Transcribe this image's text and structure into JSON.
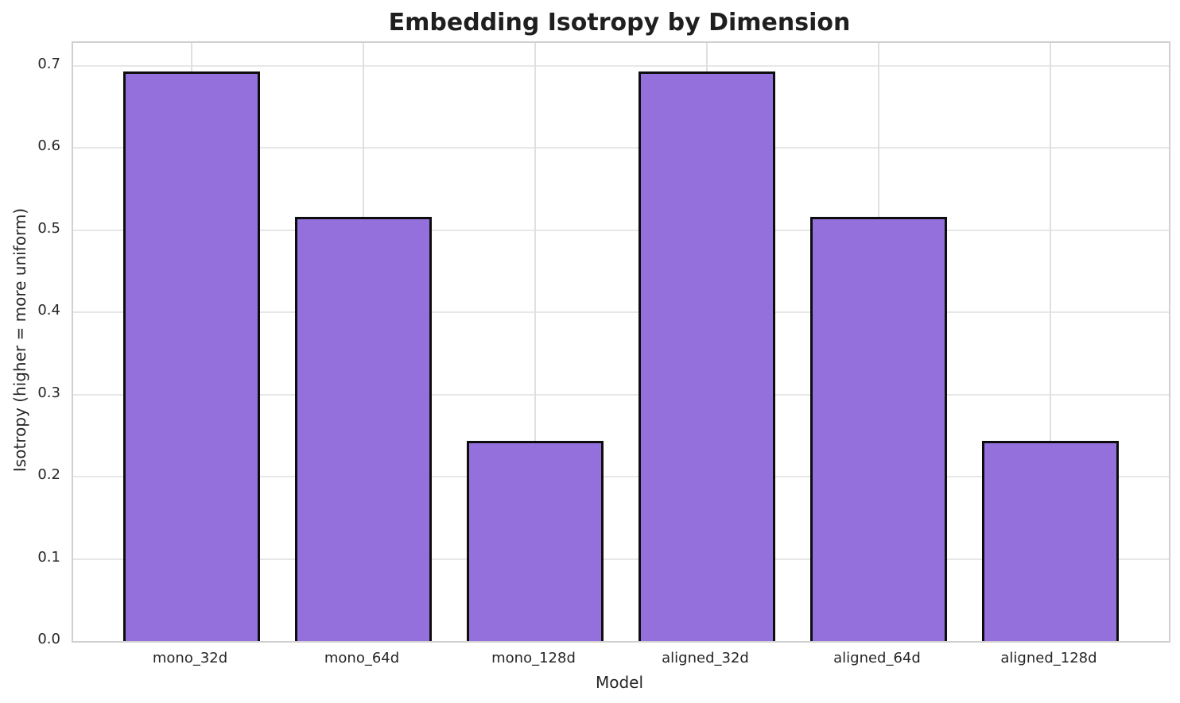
{
  "chart_data": {
    "type": "bar",
    "title": "Embedding Isotropy by Dimension",
    "xlabel": "Model",
    "ylabel": "Isotropy (higher = more uniform)",
    "categories": [
      "mono_32d",
      "mono_64d",
      "mono_128d",
      "aligned_32d",
      "aligned_64d",
      "aligned_128d"
    ],
    "values": [
      0.693,
      0.516,
      0.244,
      0.693,
      0.516,
      0.244
    ],
    "yticks": [
      0.0,
      0.1,
      0.2,
      0.3,
      0.4,
      0.5,
      0.6,
      0.7
    ],
    "ytick_labels": [
      "0.0",
      "0.1",
      "0.2",
      "0.3",
      "0.4",
      "0.5",
      "0.6",
      "0.7"
    ],
    "ylim": [
      0,
      0.728
    ],
    "grid": true,
    "legend": false,
    "colors": {
      "bar_fill": "#9370DB",
      "bar_edge": "#0d0d0d",
      "grid_horizontal": "#e7e7e7",
      "grid_vertical": "#e0e0e0",
      "spine": "#d0d0d0",
      "text": "#262626",
      "title_text": "#1f1f1f",
      "background": "#ffffff"
    }
  }
}
